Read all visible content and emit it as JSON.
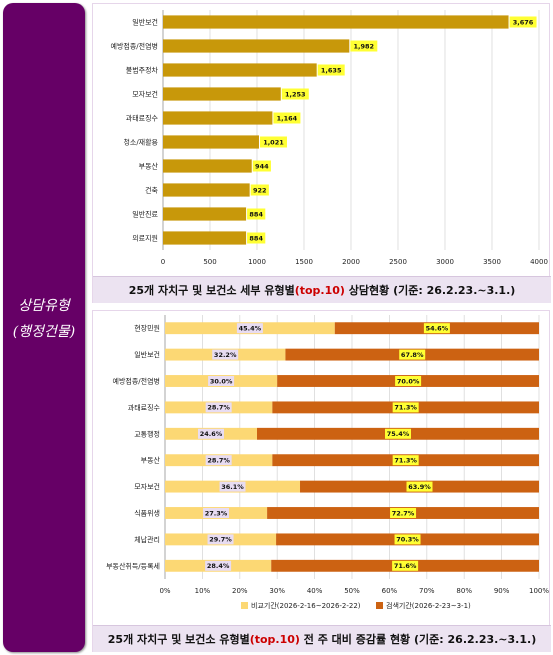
{
  "sidebar": {
    "line1": "상담유형",
    "line2": "(행정건물)"
  },
  "chart_data": [
    {
      "type": "bar",
      "orientation": "horizontal",
      "categories": [
        "일반보건",
        "예방접종/전염병",
        "불법주정차",
        "모자보건",
        "과태료징수",
        "청소/재활용",
        "부동산",
        "건축",
        "일반진료",
        "의료지원"
      ],
      "values": [
        3676,
        1982,
        1635,
        1253,
        1164,
        1021,
        944,
        922,
        884,
        884
      ],
      "value_labels": [
        "3,676",
        "1,982",
        "1,635",
        "1,253",
        "1,164",
        "1,021",
        "944",
        "922",
        "884",
        "884"
      ],
      "xlim": [
        0,
        4000
      ],
      "x_ticks": [
        "0",
        "500",
        "1000",
        "1500",
        "2000",
        "2500",
        "3000",
        "3500",
        "4000"
      ],
      "bar_color": "#c8980a",
      "grid": true,
      "title_parts": [
        "25개 자치구 및 보건소 세부 유형별",
        "(top.10)",
        " 상담현황 (기준: 26.2.23.~3.1.)"
      ]
    },
    {
      "type": "bar",
      "orientation": "horizontal",
      "stacked": "percent",
      "categories": [
        "현장민원",
        "일반보건",
        "예방접종/전염병",
        "과태료징수",
        "교통행정",
        "부동산",
        "모자보건",
        "식품위생",
        "체납관리",
        "부동산취득/등록세"
      ],
      "series": [
        {
          "name": "비교기간(2026-2-16~2026-2-22)",
          "values": [
            45.4,
            32.2,
            30.0,
            28.7,
            24.6,
            28.7,
            36.1,
            27.3,
            29.7,
            28.4
          ],
          "labels": [
            "45.4%",
            "32.2%",
            "30.0%",
            "28.7%",
            "24.6%",
            "28.7%",
            "36.1%",
            "27.3%",
            "29.7%",
            "28.4%"
          ],
          "color": "#fcd874"
        },
        {
          "name": "검색기간(2026-2-23~3-1)",
          "values": [
            54.6,
            67.8,
            70.0,
            71.3,
            75.4,
            71.3,
            63.9,
            72.7,
            70.3,
            71.6
          ],
          "labels": [
            "54.6%",
            "67.8%",
            "70.0%",
            "71.3%",
            "75.4%",
            "71.3%",
            "63.9%",
            "72.7%",
            "70.3%",
            "71.6%"
          ],
          "color": "#cc6212"
        }
      ],
      "xlim": [
        0,
        100
      ],
      "x_ticks": [
        "0%",
        "10%",
        "20%",
        "30%",
        "40%",
        "50%",
        "60%",
        "70%",
        "80%",
        "90%",
        "100%"
      ],
      "legend_position": "bottom",
      "grid": true,
      "title_parts": [
        "25개 자치구 및 보건소 유형별",
        "(top.10)",
        " 전 주 대비 증감률 현황 (기준: 26.2.23.~3.1.)"
      ]
    }
  ]
}
